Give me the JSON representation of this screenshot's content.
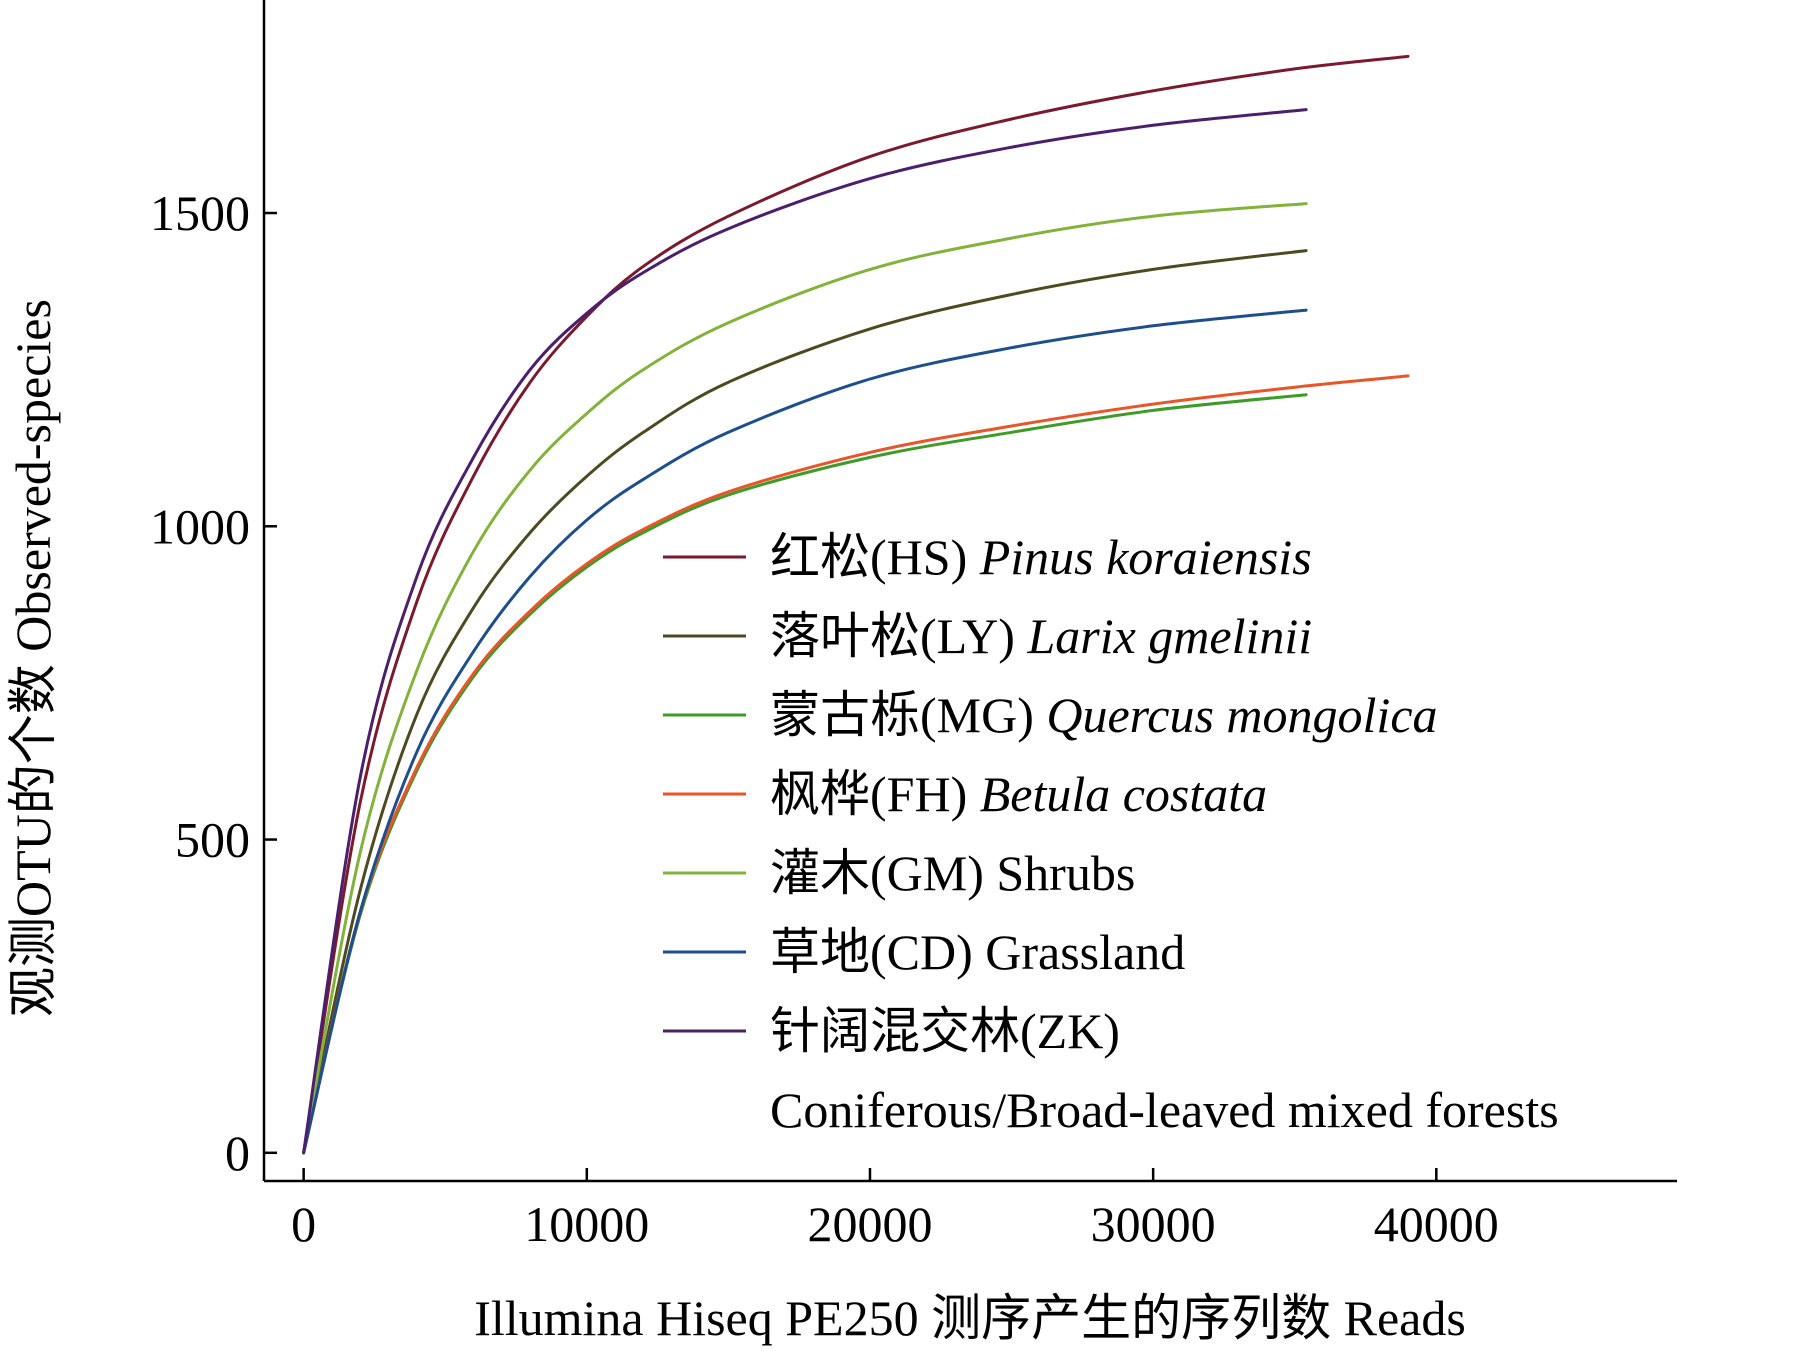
{
  "chart_data": {
    "type": "line",
    "title": "",
    "xlabel": "Illumina Hiseq PE250 测序产生的序列数 Reads",
    "ylabel": "观测OTU的个数 Observed-species",
    "xlim": [
      -1400,
      48500
    ],
    "ylim": [
      -45,
      1840
    ],
    "x_ticks": [
      0,
      10000,
      20000,
      30000,
      40000
    ],
    "y_ticks": [
      0,
      500,
      1000,
      1500
    ],
    "grid": false,
    "legend_position": "bottom-right",
    "series": [
      {
        "name_zh": "红松(HS)",
        "name_en": "Pinus koraiensis",
        "italic": true,
        "color": "#7a1a2e",
        "x": [
          0,
          2000,
          4000,
          6000,
          8000,
          10000,
          12000,
          15000,
          20000,
          25000,
          30000,
          35000,
          39000
        ],
        "y": [
          0,
          560,
          880,
          1080,
          1230,
          1335,
          1415,
          1495,
          1590,
          1650,
          1695,
          1730,
          1750
        ]
      },
      {
        "name_zh": "落叶松(LY)",
        "name_en": "Larix gmelinii",
        "italic": true,
        "color": "#4d4a22",
        "x": [
          0,
          2000,
          4000,
          6000,
          8000,
          10000,
          12000,
          15000,
          20000,
          25000,
          30000,
          35400
        ],
        "y": [
          0,
          420,
          700,
          870,
          990,
          1080,
          1150,
          1230,
          1315,
          1370,
          1410,
          1440
        ]
      },
      {
        "name_zh": "蒙古栎(MG)",
        "name_en": "Quercus mongolica",
        "italic": true,
        "color": "#3f9a2a",
        "x": [
          0,
          2000,
          4000,
          6000,
          8000,
          10000,
          12000,
          15000,
          20000,
          25000,
          30000,
          35400
        ],
        "y": [
          0,
          380,
          610,
          760,
          860,
          935,
          990,
          1050,
          1110,
          1150,
          1185,
          1210
        ]
      },
      {
        "name_zh": "枫桦(FH)",
        "name_en": "Betula costata",
        "italic": true,
        "color": "#e8552a",
        "x": [
          0,
          2000,
          4000,
          6000,
          8000,
          10000,
          12000,
          15000,
          20000,
          25000,
          30000,
          35000,
          39000
        ],
        "y": [
          0,
          385,
          615,
          765,
          865,
          940,
          995,
          1055,
          1118,
          1160,
          1195,
          1222,
          1240
        ]
      },
      {
        "name_zh": "灌木(GM)",
        "name_en": "Shrubs",
        "italic": false,
        "color": "#82b23a",
        "x": [
          0,
          2000,
          4000,
          6000,
          8000,
          10000,
          12000,
          15000,
          20000,
          25000,
          30000,
          35400
        ],
        "y": [
          0,
          480,
          770,
          960,
          1090,
          1180,
          1250,
          1325,
          1410,
          1460,
          1495,
          1515
        ]
      },
      {
        "name_zh": "草地(CD)",
        "name_en": "Grassland",
        "italic": false,
        "color": "#1f4e8c",
        "x": [
          0,
          2000,
          4000,
          6000,
          8000,
          10000,
          12000,
          15000,
          20000,
          25000,
          30000,
          35400
        ],
        "y": [
          0,
          385,
          640,
          800,
          920,
          1010,
          1075,
          1150,
          1235,
          1285,
          1320,
          1345
        ]
      },
      {
        "name_zh": "针阔混交林(ZK)",
        "name_en": "Coniferous/Broad-leaved mixed forests",
        "italic": false,
        "color": "#4b1f6b",
        "x": [
          0,
          2000,
          4000,
          6000,
          8000,
          10000,
          12000,
          15000,
          20000,
          25000,
          30000,
          35400
        ],
        "y": [
          0,
          600,
          920,
          1110,
          1250,
          1340,
          1405,
          1475,
          1555,
          1605,
          1640,
          1665
        ]
      }
    ]
  }
}
